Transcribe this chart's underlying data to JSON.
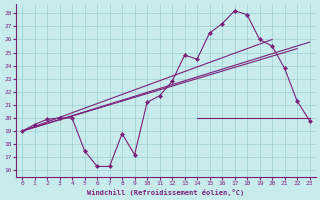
{
  "xlabel": "Windchill (Refroidissement éolien,°C)",
  "bg_color": "#c8ecec",
  "line_color": "#7b1f7b",
  "ylim": [
    15.5,
    28.7
  ],
  "xlim": [
    -0.5,
    23.5
  ],
  "yticks": [
    16,
    17,
    18,
    19,
    20,
    21,
    22,
    23,
    24,
    25,
    26,
    27,
    28
  ],
  "xticks": [
    0,
    1,
    2,
    3,
    4,
    5,
    6,
    7,
    8,
    9,
    10,
    11,
    12,
    13,
    14,
    15,
    16,
    17,
    18,
    19,
    20,
    21,
    22,
    23
  ],
  "curve1_x": [
    0,
    1,
    2,
    3,
    4,
    5,
    6,
    7,
    8,
    9,
    10,
    11,
    12,
    13,
    14,
    15,
    16,
    17,
    18,
    19,
    20,
    21,
    22,
    23
  ],
  "curve1_y": [
    19.0,
    19.5,
    19.9,
    20.0,
    20.0,
    17.5,
    16.3,
    16.3,
    18.8,
    17.2,
    21.2,
    21.7,
    22.8,
    24.8,
    24.5,
    26.5,
    27.2,
    28.2,
    27.9,
    26.0,
    25.5,
    23.8,
    21.3,
    19.8
  ],
  "line1_x": [
    0,
    20
  ],
  "line1_y": [
    19.0,
    26.0
  ],
  "line2_x": [
    0,
    23
  ],
  "line2_y": [
    19.0,
    25.8
  ],
  "line3_x": [
    0,
    22
  ],
  "line3_y": [
    19.0,
    25.3
  ],
  "hline_y": 20.0,
  "hline_x_start": 14,
  "hline_x_end": 23
}
